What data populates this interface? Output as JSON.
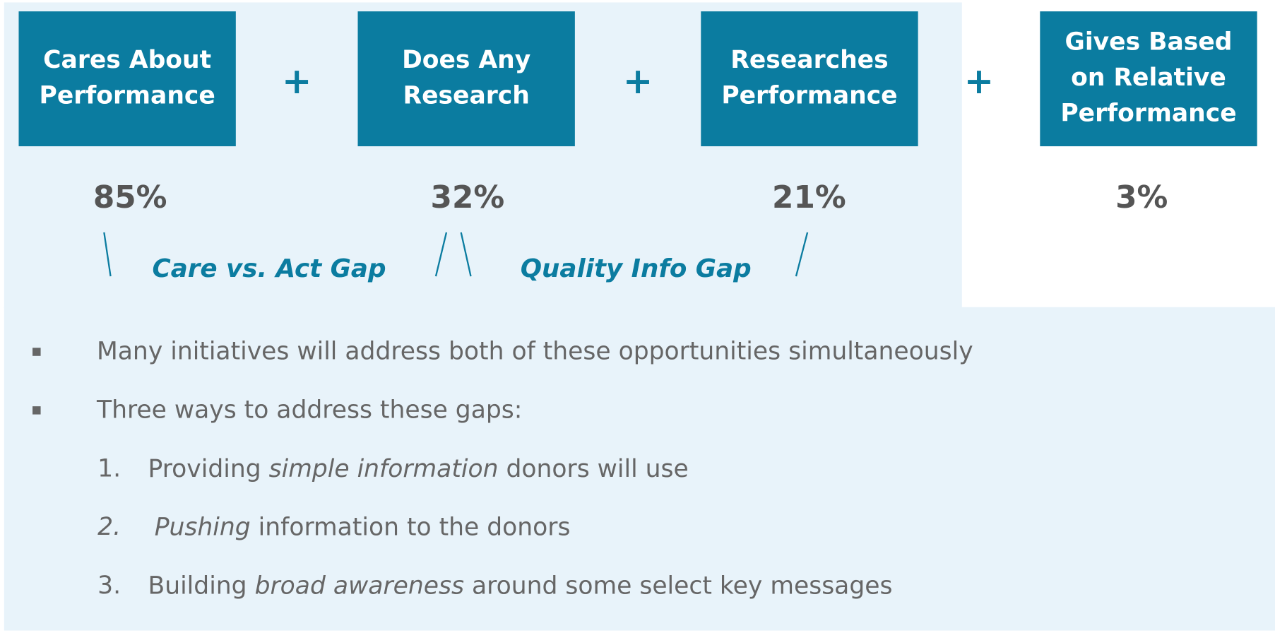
{
  "steps": [
    {
      "label": [
        "Cares About",
        "Performance"
      ],
      "percent": "85%"
    },
    {
      "label": [
        "Does Any",
        "Research"
      ],
      "percent": "32%"
    },
    {
      "label": [
        "Researches",
        "Performance"
      ],
      "percent": "21%"
    },
    {
      "label": [
        "Gives Based",
        "on Relative",
        "Performance"
      ],
      "percent": "3%"
    }
  ],
  "operator": "+",
  "gaps": [
    "Care vs. Act Gap",
    "Quality Info Gap"
  ],
  "bullets": [
    "Many initiatives will address both of these opportunities simultaneously",
    "Three ways to address these gaps:"
  ],
  "list": [
    {
      "marker": "1.",
      "parts": [
        {
          "text": "Providing "
        },
        {
          "text": "simple information",
          "italic": true
        },
        {
          "text": " donors will use"
        }
      ]
    },
    {
      "marker": "2.",
      "marker_italic": true,
      "parts": [
        {
          "text": "Pushing",
          "italic": true
        },
        {
          "text": " information to the donors"
        }
      ]
    },
    {
      "marker": "3.",
      "parts": [
        {
          "text": "Building "
        },
        {
          "text": "broad awareness",
          "italic": true
        },
        {
          "text": " around some select key messages"
        }
      ]
    }
  ]
}
